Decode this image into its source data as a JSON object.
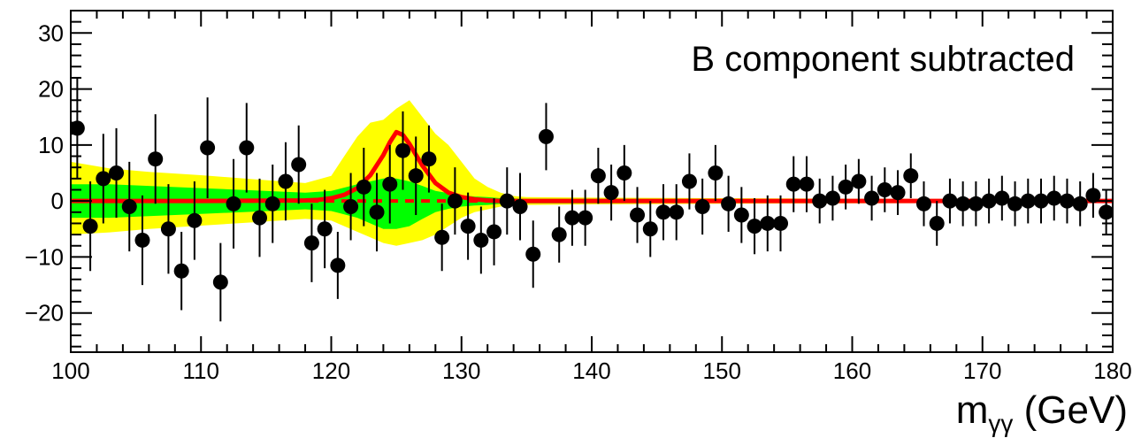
{
  "chart_data": {
    "type": "scatter",
    "title": "",
    "annotation": "B component subtracted",
    "xlabel": {
      "main": "m",
      "sub": "γγ",
      "unit": " (GeV)"
    },
    "ylabel": "",
    "xlim": [
      100,
      180
    ],
    "ylim": [
      -27,
      34
    ],
    "x_ticks": [
      100,
      110,
      120,
      130,
      140,
      150,
      160,
      170,
      180
    ],
    "x_tick_labels": [
      "100",
      "110",
      "120",
      "130",
      "140",
      "150",
      "160",
      "170",
      "180"
    ],
    "y_ticks": [
      -20,
      -10,
      0,
      10,
      20,
      30
    ],
    "y_tick_labels": [
      "−20",
      "−10",
      "0",
      "10",
      "20",
      "30"
    ],
    "grid": false,
    "colors": {
      "points": "#000000",
      "signal_fit": "#ff0000",
      "band_1sigma": "#00ff00",
      "band_2sigma": "#ffff00"
    },
    "points": {
      "x": [
        100.5,
        101.5,
        102.5,
        103.5,
        104.5,
        105.5,
        106.5,
        107.5,
        108.5,
        109.5,
        110.5,
        111.5,
        112.5,
        113.5,
        114.5,
        115.5,
        116.5,
        117.5,
        118.5,
        119.5,
        120.5,
        121.5,
        122.5,
        123.5,
        124.5,
        125.5,
        126.5,
        127.5,
        128.5,
        129.5,
        130.5,
        131.5,
        132.5,
        133.5,
        134.5,
        135.5,
        136.5,
        137.5,
        138.5,
        139.5,
        140.5,
        141.5,
        142.5,
        143.5,
        144.5,
        145.5,
        146.5,
        147.5,
        148.5,
        149.5,
        150.5,
        151.5,
        152.5,
        153.5,
        154.5,
        155.5,
        156.5,
        157.5,
        158.5,
        159.5,
        160.5,
        161.5,
        162.5,
        163.5,
        164.5,
        165.5,
        166.5,
        167.5,
        168.5,
        169.5,
        170.5,
        171.5,
        172.5,
        173.5,
        174.5,
        175.5,
        176.5,
        177.5,
        178.5,
        179.5
      ],
      "y": [
        13,
        -4.5,
        4,
        5,
        -1,
        -7,
        7.5,
        -5,
        -12.5,
        -3.5,
        9.5,
        -14.5,
        -0.5,
        9.5,
        -3,
        -0.5,
        3.5,
        6.5,
        -7.5,
        -5,
        -11.5,
        -1,
        2.5,
        -2,
        3,
        9,
        4.5,
        7.5,
        -6.5,
        0,
        -4.5,
        -7,
        -5.5,
        0,
        -1,
        -9.5,
        11.5,
        -6,
        -3,
        -3,
        4.5,
        1.5,
        5,
        -2.5,
        -5,
        -2,
        -2,
        3.5,
        -1,
        5,
        -0.5,
        -2.5,
        -4.5,
        -4,
        -4,
        3,
        3,
        0,
        0.5,
        2.5,
        3.5,
        0.5,
        2,
        1.5,
        4.5,
        -0.5,
        -4,
        0,
        -0.5,
        -0.5,
        0,
        0.5,
        -0.5,
        0,
        0,
        0.5,
        0,
        -0.5,
        1,
        -2
      ],
      "err": [
        9,
        8,
        8,
        8,
        8,
        8,
        8,
        8,
        7,
        7,
        9,
        7,
        8,
        8,
        7,
        7,
        7,
        7,
        7,
        7,
        6,
        6,
        7,
        7,
        7,
        7,
        7,
        6,
        6,
        6,
        6,
        6,
        6,
        6,
        6,
        6,
        6,
        5,
        5,
        5,
        5,
        5,
        5,
        5,
        5,
        5,
        5,
        5,
        5,
        5,
        5,
        5,
        5,
        5,
        5,
        5,
        5,
        4,
        4,
        4,
        4,
        4,
        4,
        4,
        4,
        4,
        4,
        4,
        4,
        4,
        4,
        4,
        4,
        4,
        4,
        4,
        4,
        4,
        4,
        4
      ]
    },
    "signal_fit": {
      "x": [
        100,
        110,
        118,
        119,
        120,
        121,
        122,
        123,
        124,
        124.5,
        125,
        125.5,
        126,
        127,
        128,
        129,
        130,
        131,
        132,
        133,
        135,
        140,
        150,
        160,
        170,
        180
      ],
      "y": [
        0,
        0,
        0.1,
        0.2,
        0.5,
        1.1,
        2.3,
        4.6,
        8.2,
        10.5,
        12.3,
        11.8,
        10.2,
        6.3,
        3.2,
        1.5,
        0.7,
        0.3,
        0.1,
        0,
        0,
        0,
        0,
        0,
        0,
        0
      ]
    },
    "background_fit": {
      "y": 0,
      "style": "dashed"
    },
    "band_1sigma": {
      "x": [
        100,
        103,
        106,
        110,
        114,
        118,
        120,
        122,
        124,
        125,
        126,
        127,
        128,
        129,
        130,
        131,
        132,
        133,
        135,
        140,
        150,
        160,
        170,
        180
      ],
      "upper": [
        3,
        3,
        2.7,
        2.3,
        1.9,
        1.5,
        1.8,
        3,
        4,
        4,
        3.5,
        2.7,
        1.8,
        1.4,
        1,
        0.8,
        0.7,
        0.5,
        0.4,
        0.4,
        0.35,
        0.3,
        0.25,
        0.2
      ],
      "lower": [
        -3,
        -3,
        -2.7,
        -2.3,
        -1.9,
        -1.5,
        -1.8,
        -3,
        -5,
        -5,
        -4.5,
        -3.2,
        -2,
        -1.4,
        -1,
        -0.8,
        -0.7,
        -0.5,
        -0.4,
        -0.4,
        -0.35,
        -0.3,
        -0.25,
        -0.2
      ]
    },
    "band_2sigma": {
      "x": [
        100,
        103,
        106,
        110,
        114,
        118,
        120,
        121,
        122,
        123,
        124,
        125,
        126,
        127,
        128,
        129,
        130,
        131,
        132,
        133,
        134,
        135,
        140,
        150,
        160,
        170,
        180
      ],
      "upper": [
        7,
        5.8,
        5.2,
        4.6,
        3.9,
        3.2,
        4.5,
        8,
        11.5,
        14,
        14.5,
        16.5,
        18,
        15,
        12,
        10,
        7,
        4,
        2.5,
        1.5,
        0.9,
        0.7,
        0.6,
        0.5,
        0.4,
        0.35,
        0.3
      ],
      "lower": [
        -6,
        -5.6,
        -5,
        -4.4,
        -3.8,
        -3.2,
        -3.5,
        -4.5,
        -5.5,
        -6.5,
        -7.5,
        -8,
        -7.5,
        -7,
        -6,
        -4.5,
        -3,
        -2,
        -1.5,
        -1,
        -0.8,
        -0.7,
        -0.6,
        -0.5,
        -0.4,
        -0.35,
        -0.3
      ]
    }
  }
}
